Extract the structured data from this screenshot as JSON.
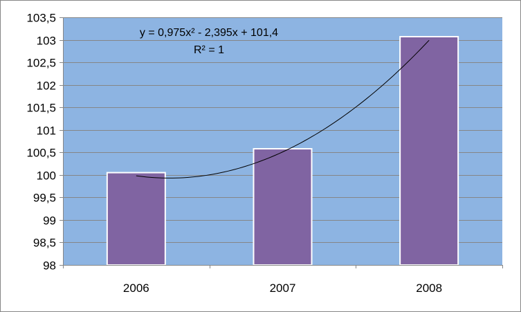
{
  "chart_data": {
    "type": "bar",
    "categories": [
      "2006",
      "2007",
      "2008"
    ],
    "values": [
      100.05,
      100.58,
      103.07
    ],
    "ylim": [
      98,
      103.5
    ],
    "yticks": [
      "98",
      "98,5",
      "99",
      "99,5",
      "100",
      "100,5",
      "101",
      "101,5",
      "102",
      "102,5",
      "103",
      "103,5"
    ],
    "ytick_values": [
      98,
      98.5,
      99,
      99.5,
      100,
      100.5,
      101,
      101.5,
      102,
      102.5,
      103,
      103.5
    ],
    "grid": true,
    "trendline": {
      "type": "polynomial",
      "coefficients": [
        0.975,
        -2.395,
        101.4
      ],
      "equation": "y = 0,975x² - 2,395x + 101,4",
      "r_squared": "R² = 1"
    },
    "colors": {
      "plot_background": "#8DB4E2",
      "bar_fill": "#8064A2",
      "bar_stroke": "#FFFFFF",
      "gridline": "#868686",
      "trendline": "#000000"
    }
  }
}
